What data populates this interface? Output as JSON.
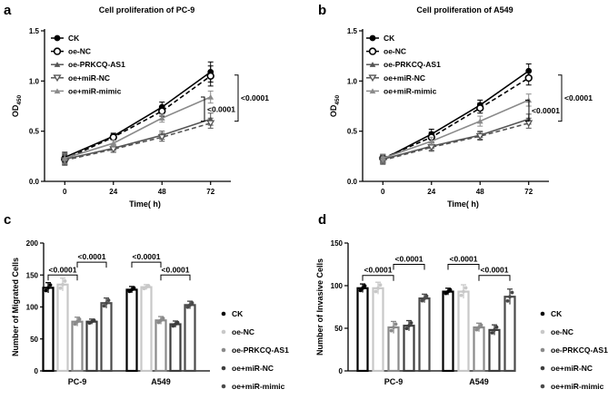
{
  "chart_data": [
    {
      "id": "a",
      "panel_label": "a",
      "type": "line",
      "title": "Cell proliferation of PC-9",
      "xlabel": "Time( h)",
      "ylabel": "OD",
      "ylabel_sub": "450",
      "x": [
        0,
        24,
        48,
        72
      ],
      "xlim": [
        -10,
        82
      ],
      "ylim": [
        0.0,
        1.5
      ],
      "yticks": [
        0.0,
        0.5,
        1.0,
        1.5
      ],
      "yticklabels": [
        "0.0",
        "0.5",
        "1.0",
        "1.5"
      ],
      "xticklabels": [
        "0",
        "24",
        "48",
        "72"
      ],
      "legend": [
        "CK",
        "oe-NC",
        "oe-PRKCQ-AS1",
        "oe+miR-NC",
        "oe+miR-mimic"
      ],
      "series": [
        {
          "name": "CK",
          "values": [
            0.24,
            0.45,
            0.74,
            1.09
          ],
          "err": [
            0.05,
            0.03,
            0.05,
            0.1
          ]
        },
        {
          "name": "oe-NC",
          "values": [
            0.22,
            0.44,
            0.7,
            1.05
          ],
          "err": [
            0.05,
            0.03,
            0.05,
            0.1
          ]
        },
        {
          "name": "oe-PRKCQ-AS1",
          "values": [
            0.22,
            0.33,
            0.46,
            0.62
          ],
          "err": [
            0.05,
            0.04,
            0.04,
            0.06
          ]
        },
        {
          "name": "oe+miR-NC",
          "values": [
            0.21,
            0.32,
            0.44,
            0.58
          ],
          "err": [
            0.05,
            0.03,
            0.04,
            0.05
          ]
        },
        {
          "name": "oe+miR-mimic",
          "values": [
            0.23,
            0.38,
            0.63,
            0.84
          ],
          "err": [
            0.05,
            0.03,
            0.04,
            0.06
          ]
        }
      ],
      "brackets": [
        {
          "label": "<0.0001",
          "from": 1.06,
          "to": 0.6
        },
        {
          "label": "<0.0001",
          "from": 0.84,
          "to": 0.6
        }
      ]
    },
    {
      "id": "b",
      "panel_label": "b",
      "type": "line",
      "title": "Cell proliferation of A549",
      "xlabel": "Time( h)",
      "ylabel": "OD",
      "ylabel_sub": "450",
      "x": [
        0,
        24,
        48,
        72
      ],
      "xlim": [
        -10,
        82
      ],
      "ylim": [
        0.0,
        1.5
      ],
      "yticks": [
        0.0,
        0.5,
        1.0,
        1.5
      ],
      "yticklabels": [
        "0.0",
        "0.5",
        "1.0",
        "1.5"
      ],
      "xticklabels": [
        "0",
        "24",
        "48",
        "72"
      ],
      "legend": [
        "CK",
        "oe-NC",
        "oe-PRKCQ-AS1",
        "oe+miR-NC",
        "oe+miR-mimic"
      ],
      "series": [
        {
          "name": "CK",
          "values": [
            0.22,
            0.47,
            0.76,
            1.1
          ],
          "err": [
            0.04,
            0.05,
            0.05,
            0.07
          ]
        },
        {
          "name": "oe-NC",
          "values": [
            0.23,
            0.44,
            0.73,
            1.03
          ],
          "err": [
            0.04,
            0.05,
            0.05,
            0.07
          ]
        },
        {
          "name": "oe-PRKCQ-AS1",
          "values": [
            0.22,
            0.35,
            0.46,
            0.62
          ],
          "err": [
            0.04,
            0.04,
            0.04,
            0.05
          ]
        },
        {
          "name": "oe+miR-NC",
          "values": [
            0.21,
            0.34,
            0.45,
            0.58
          ],
          "err": [
            0.04,
            0.04,
            0.04,
            0.05
          ]
        },
        {
          "name": "oe+miR-mimic",
          "values": [
            0.23,
            0.4,
            0.6,
            0.81
          ],
          "err": [
            0.04,
            0.04,
            0.05,
            0.06
          ]
        }
      ],
      "brackets": [
        {
          "label": "<0.0001",
          "from": 1.06,
          "to": 0.6
        },
        {
          "label": "<0.0001",
          "from": 0.81,
          "to": 0.6
        }
      ]
    },
    {
      "id": "c",
      "panel_label": "c",
      "type": "bar",
      "title": "",
      "xlabel": "",
      "ylabel": "Number of Migrated Cells",
      "categories": [
        "PC-9",
        "A549"
      ],
      "ylim": [
        0,
        200
      ],
      "yticks": [
        0,
        50,
        100,
        150,
        200
      ],
      "legend": [
        "CK",
        "oe-NC",
        "oe-PRKCQ-AS1",
        "oe+miR-NC",
        "oe+miR-mimic"
      ],
      "series": [
        {
          "name": "CK",
          "values": [
            130,
            127
          ],
          "err": [
            8,
            5
          ]
        },
        {
          "name": "oe-NC",
          "values": [
            135,
            131
          ],
          "err": [
            10,
            4
          ]
        },
        {
          "name": "oe-PRKCQ-AS1",
          "values": [
            77,
            79
          ],
          "err": [
            7,
            6
          ]
        },
        {
          "name": "oe+miR-NC",
          "values": [
            77,
            73
          ],
          "err": [
            4,
            5
          ]
        },
        {
          "name": "oe+miR-mimic",
          "values": [
            106,
            103
          ],
          "err": [
            8,
            6
          ]
        }
      ],
      "brackets": [
        {
          "label": "<0.0001",
          "group": 0,
          "a": 0,
          "b": 2,
          "level": 150
        },
        {
          "label": "<0.0001",
          "group": 0,
          "a": 2,
          "b": 4,
          "level": 170
        },
        {
          "label": "<0.0001",
          "group": 1,
          "a": 0,
          "b": 2,
          "level": 170
        },
        {
          "label": "<0.0001",
          "group": 1,
          "a": 2,
          "b": 4,
          "level": 150
        }
      ]
    },
    {
      "id": "d",
      "panel_label": "d",
      "type": "bar",
      "title": "",
      "xlabel": "",
      "ylabel": "Number of Invasive Cells",
      "categories": [
        "PC-9",
        "A549"
      ],
      "ylim": [
        0,
        150
      ],
      "yticks": [
        0,
        50,
        100,
        150
      ],
      "legend": [
        "CK",
        "oe-NC",
        "oe-PRKCQ-AS1",
        "oe+miR-NC",
        "oe+miR-mimic"
      ],
      "series": [
        {
          "name": "CK",
          "values": [
            97,
            93
          ],
          "err": [
            5,
            4
          ]
        },
        {
          "name": "oe-NC",
          "values": [
            97,
            93
          ],
          "err": [
            7,
            8
          ]
        },
        {
          "name": "oe-PRKCQ-AS1",
          "values": [
            51,
            51
          ],
          "err": [
            7,
            5
          ]
        },
        {
          "name": "oe+miR-NC",
          "values": [
            53,
            48
          ],
          "err": [
            6,
            6
          ]
        },
        {
          "name": "oe+miR-mimic",
          "values": [
            85,
            87
          ],
          "err": [
            5,
            9
          ]
        }
      ],
      "brackets": [
        {
          "label": "<0.0001",
          "group": 0,
          "a": 0,
          "b": 2,
          "level": 112
        },
        {
          "label": "<0.0001",
          "group": 0,
          "a": 2,
          "b": 4,
          "level": 125
        },
        {
          "label": "<0.0001",
          "group": 1,
          "a": 0,
          "b": 2,
          "level": 125
        },
        {
          "label": "<0.0001",
          "group": 1,
          "a": 2,
          "b": 4,
          "level": 112
        }
      ]
    }
  ],
  "colors": {
    "CK": "#000000",
    "oe-NC": "#c8c8c8",
    "oe-PRKCQ-AS1": "#8a8a8a",
    "oe+miR-NC": "#3d3d3d",
    "oe+miR-mimic": "#4a4a4a",
    "line_CK": "#000000",
    "line_oe-NC": "#000000",
    "line_oe-PRKCQ-AS1": "#555555",
    "line_oe+miR-NC": "#555555",
    "line_oe+miR-mimic": "#8a8a8a",
    "dot_oe+miR-mimic": "#000000"
  }
}
